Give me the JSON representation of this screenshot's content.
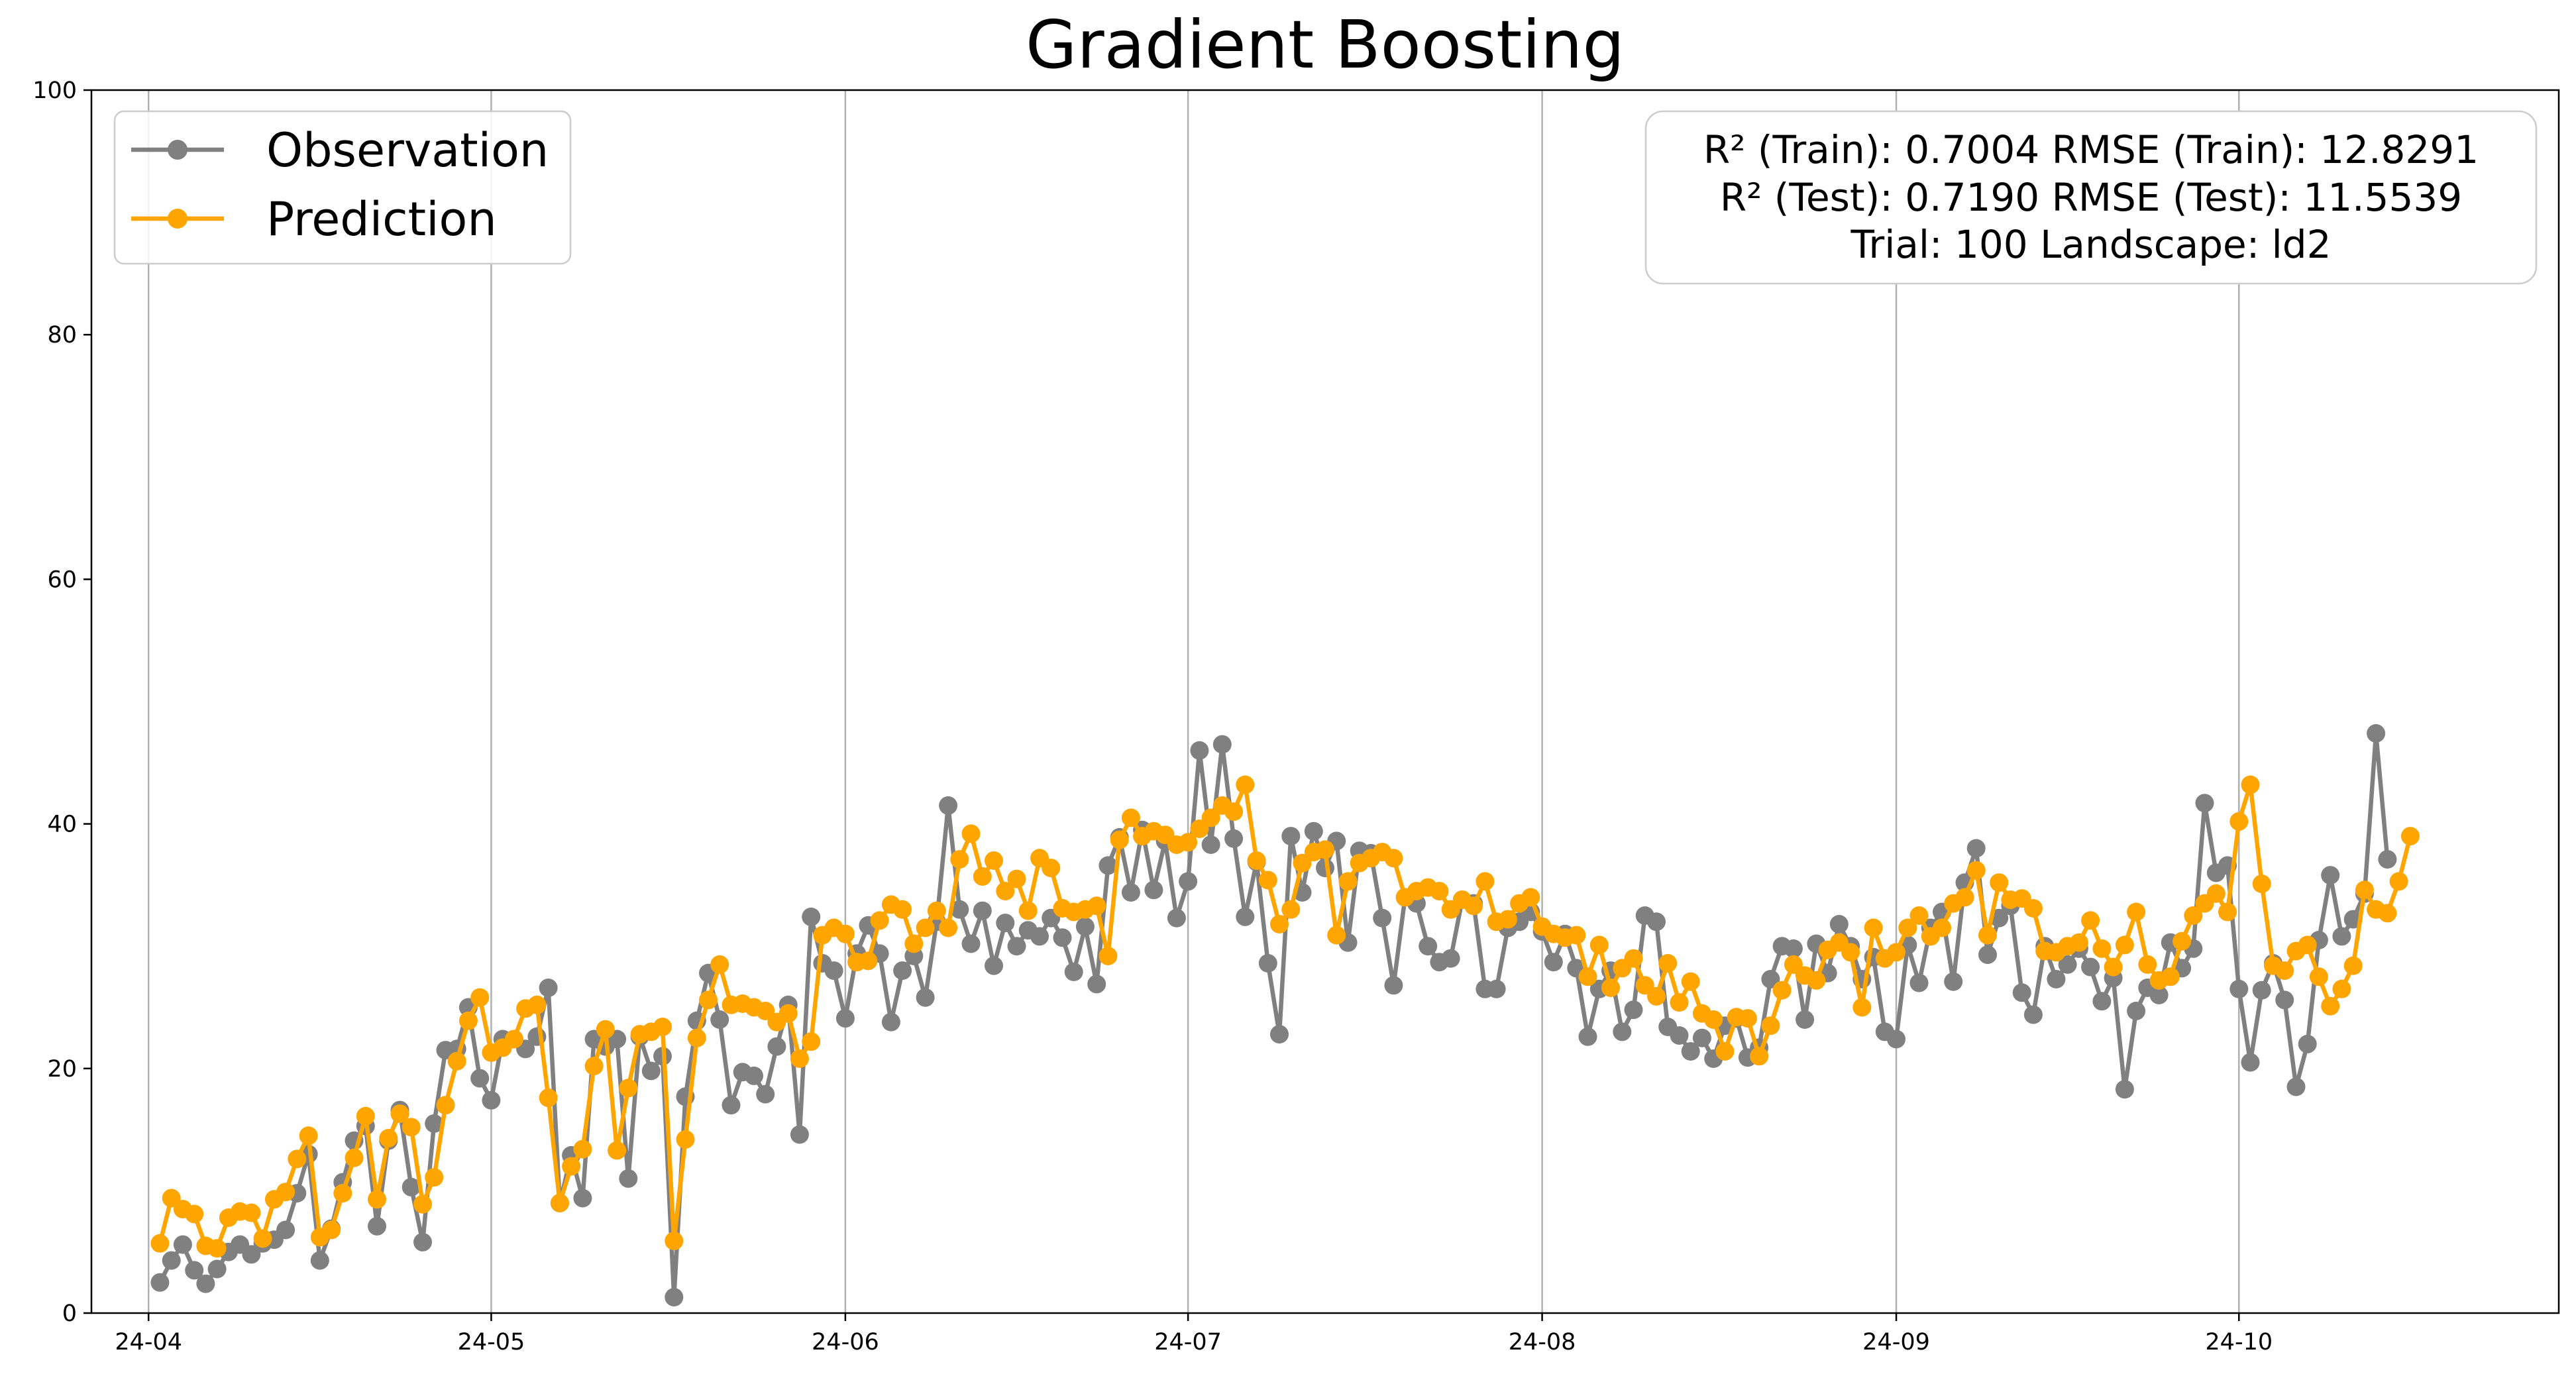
{
  "chart_data": {
    "type": "line",
    "title": "Gradient Boosting",
    "xlabel": "",
    "ylabel": "",
    "ylim": [
      0,
      100
    ],
    "yticks": [
      0,
      20,
      40,
      60,
      80,
      100
    ],
    "x_range": [
      "2024-03-27",
      "2024-10-29"
    ],
    "xticks": [
      {
        "date": "2024-04-01",
        "label": "24-04"
      },
      {
        "date": "2024-05-01",
        "label": "24-05"
      },
      {
        "date": "2024-06-01",
        "label": "24-06"
      },
      {
        "date": "2024-07-01",
        "label": "24-07"
      },
      {
        "date": "2024-08-01",
        "label": "24-08"
      },
      {
        "date": "2024-09-01",
        "label": "24-09"
      },
      {
        "date": "2024-10-01",
        "label": "24-10"
      }
    ],
    "grid": "x-only",
    "legend_position": "top-left",
    "start_date": "2024-04-02",
    "step_days": 1,
    "series": [
      {
        "name": "Observation",
        "color": "#808080",
        "values": [
          2.5,
          4.3,
          5.6,
          3.5,
          2.4,
          3.6,
          5.0,
          5.6,
          4.8,
          5.7,
          6.0,
          6.8,
          9.8,
          13.0,
          4.3,
          6.9,
          10.7,
          14.1,
          15.3,
          7.1,
          14.1,
          16.6,
          10.3,
          5.8,
          15.5,
          21.5,
          21.6,
          25.0,
          19.2,
          17.4,
          22.4,
          22.4,
          21.6,
          22.6,
          26.6,
          9.0,
          12.9,
          9.4,
          22.4,
          21.8,
          22.4,
          11.0,
          22.6,
          19.8,
          21.0,
          1.3,
          17.7,
          23.9,
          27.8,
          24.0,
          17.0,
          19.7,
          19.4,
          17.9,
          21.8,
          25.2,
          14.6,
          32.4,
          28.6,
          28.0,
          24.1,
          29.4,
          31.7,
          29.4,
          23.8,
          28.0,
          29.2,
          25.8,
          32.0,
          41.5,
          33.0,
          30.2,
          32.9,
          28.4,
          31.9,
          30.0,
          31.3,
          30.8,
          32.3,
          30.7,
          27.9,
          31.6,
          26.9,
          36.6,
          38.9,
          34.4,
          39.5,
          34.6,
          38.6,
          32.3,
          35.3,
          46.0,
          38.3,
          46.5,
          38.8,
          32.4,
          36.9,
          28.6,
          22.8,
          39.0,
          34.4,
          39.4,
          36.4,
          38.6,
          30.3,
          37.8,
          37.6,
          32.3,
          26.8,
          34.0,
          33.5,
          30.0,
          28.7,
          29.0,
          33.8,
          33.5,
          26.5,
          26.5,
          31.5,
          32.0,
          32.8,
          31.2,
          28.7,
          31.0,
          28.2,
          22.6,
          26.5,
          28.0,
          23.0,
          24.8,
          32.5,
          32.0,
          23.4,
          22.7,
          21.4,
          22.5,
          20.8,
          23.5,
          24.1,
          20.9,
          21.7,
          27.3,
          30.0,
          29.8,
          24.0,
          30.2,
          27.8,
          31.8,
          30.0,
          27.3,
          29.1,
          23.0,
          22.4,
          30.1,
          27.0,
          31.5,
          32.8,
          27.1,
          35.2,
          38.0,
          29.3,
          32.3,
          33.3,
          26.2,
          24.4,
          30.0,
          27.3,
          28.5,
          29.8,
          28.3,
          25.5,
          27.4,
          18.3,
          24.7,
          26.6,
          26.0,
          30.3,
          28.2,
          29.8,
          41.7,
          36.0,
          36.6,
          26.5,
          20.5,
          26.4,
          28.6,
          25.6,
          18.5,
          22.0,
          30.5,
          35.8,
          30.8,
          32.2,
          34.3,
          47.4,
          37.1
        ]
      },
      {
        "name": "Prediction",
        "color": "#FFA500",
        "values": [
          5.7,
          9.4,
          8.5,
          8.1,
          5.5,
          5.3,
          7.8,
          8.3,
          8.2,
          6.1,
          9.3,
          9.9,
          12.6,
          14.5,
          6.2,
          6.8,
          9.8,
          12.7,
          16.1,
          9.3,
          14.3,
          16.3,
          15.2,
          8.9,
          11.1,
          17.0,
          20.6,
          23.9,
          25.8,
          21.3,
          21.7,
          22.4,
          24.9,
          25.2,
          17.6,
          9.0,
          12.0,
          13.4,
          20.2,
          23.2,
          13.3,
          18.4,
          22.8,
          23.0,
          23.4,
          5.9,
          14.2,
          22.5,
          25.6,
          28.5,
          25.2,
          25.3,
          25.0,
          24.7,
          23.8,
          24.5,
          20.8,
          22.2,
          30.9,
          31.5,
          31.0,
          28.7,
          28.8,
          32.1,
          33.4,
          33.0,
          30.2,
          31.5,
          32.9,
          31.5,
          37.1,
          39.2,
          35.7,
          37.0,
          34.5,
          35.5,
          32.9,
          37.2,
          36.4,
          33.1,
          32.8,
          33.0,
          33.3,
          29.2,
          38.7,
          40.5,
          39.0,
          39.4,
          39.1,
          38.3,
          38.5,
          39.6,
          40.5,
          41.5,
          41.0,
          43.2,
          37.0,
          35.4,
          31.8,
          33.0,
          36.8,
          37.7,
          37.9,
          30.9,
          35.3,
          36.8,
          37.2,
          37.7,
          37.2,
          34.0,
          34.5,
          34.8,
          34.5,
          33.0,
          33.8,
          33.3,
          35.3,
          32.0,
          32.2,
          33.5,
          34.0,
          31.6,
          31.0,
          30.7,
          30.9,
          27.5,
          30.1,
          26.6,
          28.2,
          29.0,
          26.8,
          25.9,
          28.6,
          25.4,
          27.1,
          24.5,
          24.0,
          21.4,
          24.2,
          24.1,
          21.0,
          23.5,
          26.4,
          28.5,
          27.6,
          27.2,
          29.7,
          30.3,
          29.5,
          25.0,
          31.5,
          29.0,
          29.5,
          31.5,
          32.5,
          30.8,
          31.5,
          33.5,
          34.0,
          36.2,
          30.9,
          35.2,
          33.8,
          33.9,
          33.1,
          29.6,
          29.5,
          30.0,
          30.3,
          32.1,
          29.8,
          28.3,
          30.1,
          32.8,
          28.5,
          27.2,
          27.5,
          30.4,
          32.5,
          33.5,
          34.3,
          32.8,
          40.2,
          43.2,
          35.1,
          28.4,
          28.0,
          29.6,
          30.1,
          27.5,
          25.1,
          26.5,
          28.4,
          34.6,
          33.0,
          32.7,
          35.3,
          39.0
        ]
      }
    ]
  },
  "legend": {
    "items": [
      {
        "label": "Observation",
        "color": "#808080"
      },
      {
        "label": "Prediction",
        "color": "#FFA500"
      }
    ]
  },
  "metrics": {
    "line1": "R² (Train): 0.7004  RMSE (Train): 12.8291",
    "line2": "R² (Test): 0.7190  RMSE (Test): 11.5539",
    "line3": "Trial: 100  Landscape: ld2"
  }
}
